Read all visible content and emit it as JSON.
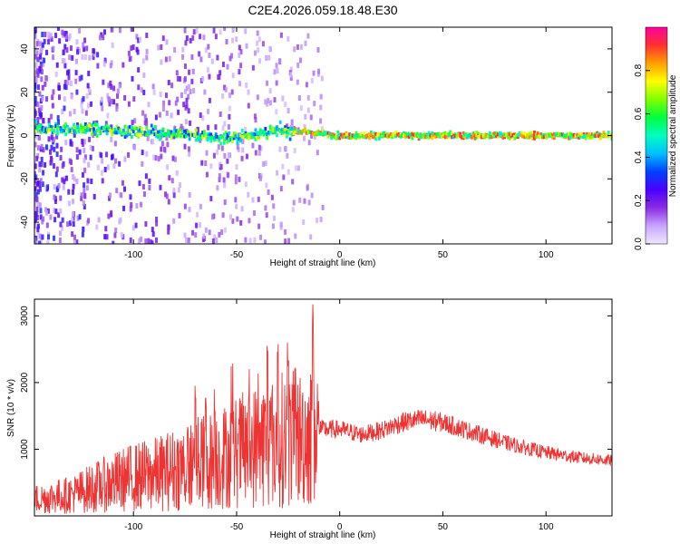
{
  "chart_data": [
    {
      "type": "heatmap",
      "title": "C2E4.2026.059.18.48.E30",
      "xlabel": "Height of straight line (km)",
      "ylabel": "Frequency (Hz)",
      "xlim": [
        -148,
        132
      ],
      "ylim": [
        -50,
        50
      ],
      "xticks": [
        -100,
        -50,
        0,
        50,
        100
      ],
      "yticks": [
        -40,
        -20,
        0,
        20,
        40
      ],
      "colorbar": {
        "label": "Normalized spectral amplitude",
        "range": [
          0,
          1
        ],
        "ticks": [
          0.0,
          0.2,
          0.4,
          0.6,
          0.8
        ],
        "tick_labels": [
          "0.0",
          "0.2",
          "0.4",
          "0.6",
          "0.8"
        ],
        "colors": [
          "#f0e6ff",
          "#c8a6ff",
          "#8a2be2",
          "#4b00ff",
          "#0040ff",
          "#00c0ff",
          "#00ffc0",
          "#00ff40",
          "#80ff00",
          "#ffff00",
          "#ffa000",
          "#ff3030",
          "#ff00a0"
        ]
      },
      "band_center_hz": [
        {
          "x": -140,
          "y": 3
        },
        {
          "x": -120,
          "y": 3
        },
        {
          "x": -100,
          "y": 2
        },
        {
          "x": -80,
          "y": 1
        },
        {
          "x": -60,
          "y": -1
        },
        {
          "x": -50,
          "y": -1
        },
        {
          "x": -40,
          "y": 1
        },
        {
          "x": -30,
          "y": 2
        },
        {
          "x": -20,
          "y": 2
        },
        {
          "x": -10,
          "y": 1
        },
        {
          "x": 0,
          "y": 0
        },
        {
          "x": 20,
          "y": 0
        },
        {
          "x": 50,
          "y": 0
        },
        {
          "x": 80,
          "y": 0
        },
        {
          "x": 110,
          "y": 0
        },
        {
          "x": 132,
          "y": 0
        }
      ]
    },
    {
      "type": "line",
      "xlabel": "Height of straight line (km)",
      "ylabel": "SNR (10 * v/v)",
      "xlim": [
        -148,
        132
      ],
      "ylim": [
        0,
        3250
      ],
      "xticks": [
        -100,
        -50,
        0,
        50,
        100
      ],
      "yticks": [
        1000,
        2000,
        3000
      ],
      "series": [
        {
          "name": "SNR",
          "color": "#ee3333",
          "points": [
            {
              "x": -148,
              "y": 250
            },
            {
              "x": -140,
              "y": 280
            },
            {
              "x": -130,
              "y": 320
            },
            {
              "x": -120,
              "y": 420
            },
            {
              "x": -110,
              "y": 500
            },
            {
              "x": -100,
              "y": 580
            },
            {
              "x": -90,
              "y": 620
            },
            {
              "x": -80,
              "y": 700
            },
            {
              "x": -70,
              "y": 780
            },
            {
              "x": -60,
              "y": 850
            },
            {
              "x": -50,
              "y": 950
            },
            {
              "x": -40,
              "y": 1050
            },
            {
              "x": -30,
              "y": 1150
            },
            {
              "x": -20,
              "y": 1150
            },
            {
              "x": -15,
              "y": 1200
            },
            {
              "x": -10,
              "y": 1300
            },
            {
              "x": 0,
              "y": 1300
            },
            {
              "x": 10,
              "y": 1220
            },
            {
              "x": 20,
              "y": 1280
            },
            {
              "x": 30,
              "y": 1400
            },
            {
              "x": 40,
              "y": 1450
            },
            {
              "x": 50,
              "y": 1400
            },
            {
              "x": 60,
              "y": 1300
            },
            {
              "x": 70,
              "y": 1200
            },
            {
              "x": 80,
              "y": 1100
            },
            {
              "x": 90,
              "y": 1020
            },
            {
              "x": 100,
              "y": 950
            },
            {
              "x": 110,
              "y": 900
            },
            {
              "x": 120,
              "y": 860
            },
            {
              "x": 132,
              "y": 830
            }
          ],
          "spikes": [
            {
              "x": -70,
              "y": 2000
            },
            {
              "x": -65,
              "y": 1800
            },
            {
              "x": -35,
              "y": 2600
            },
            {
              "x": -30,
              "y": 2700
            },
            {
              "x": -25,
              "y": 2500
            },
            {
              "x": -13,
              "y": 3250
            }
          ]
        }
      ]
    }
  ]
}
